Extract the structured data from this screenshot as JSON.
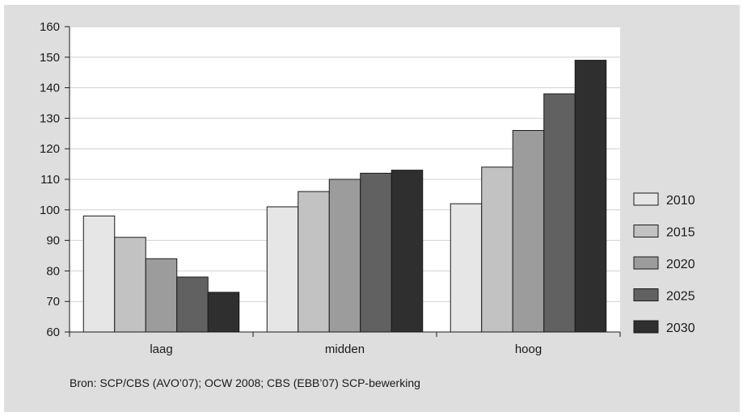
{
  "chart_data": {
    "type": "bar",
    "categories": [
      "laag",
      "midden",
      "hoog"
    ],
    "series": [
      {
        "name": "2010",
        "values": [
          98,
          101,
          102
        ],
        "color": "#e6e6e6"
      },
      {
        "name": "2015",
        "values": [
          91,
          106,
          114
        ],
        "color": "#c2c2c2"
      },
      {
        "name": "2020",
        "values": [
          84,
          110,
          126
        ],
        "color": "#9c9c9c"
      },
      {
        "name": "2025",
        "values": [
          78,
          112,
          138
        ],
        "color": "#616161"
      },
      {
        "name": "2030",
        "values": [
          73,
          113,
          149
        ],
        "color": "#2f2f2f"
      }
    ],
    "ylim": [
      60,
      160
    ],
    "yticks": [
      60,
      70,
      80,
      90,
      100,
      110,
      120,
      130,
      140,
      150,
      160
    ],
    "xlabel": "",
    "ylabel": "",
    "title": "",
    "grid": true,
    "legend_position": "right"
  },
  "source": "Bron: SCP/CBS (AVO’07); OCW 2008; CBS (EBB’07) SCP-bewerking",
  "colors": {
    "background": "#dedede",
    "plot_area": "#ffffff",
    "gridline": "#d0d0d0",
    "axis": "#1a1a1a"
  }
}
